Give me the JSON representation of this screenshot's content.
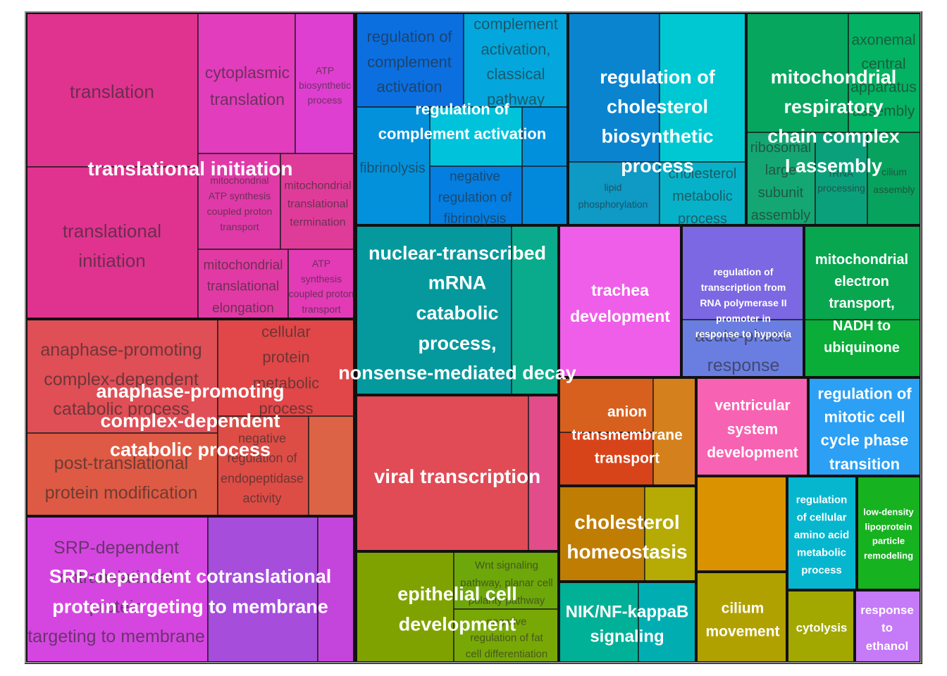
{
  "chart_data": {
    "type": "treemap",
    "groups": [
      {
        "name": "translational initiation",
        "color": "#e0338f",
        "terms": [
          {
            "name": "translation",
            "color": "#e0338f"
          },
          {
            "name": "cytoplasmic translation",
            "color": "#e23dbc"
          },
          {
            "name": "ATP biosynthetic process",
            "color": "#df3fd0"
          },
          {
            "name": "translational initiation",
            "color": "#e0338f"
          },
          {
            "name": "mitochondrial ATP synthesis coupled proton transport",
            "color": "#e03aa8"
          },
          {
            "name": "mitochondrial translational termination",
            "color": "#df3c9a"
          },
          {
            "name": "mitochondrial translational elongation",
            "color": "#e23aa4"
          },
          {
            "name": "ATP synthesis coupled proton transport",
            "color": "#e33ab6"
          }
        ]
      },
      {
        "name": "anaphase-promoting complex-dependent catabolic process",
        "color": "#e04e56",
        "terms": [
          {
            "name": "anaphase-promoting complex-dependent catabolic process",
            "color": "#e04e56"
          },
          {
            "name": "cellular protein metabolic process",
            "color": "#e14748"
          },
          {
            "name": "post-translational protein modification",
            "color": "#df5a44"
          },
          {
            "name": "negative regulation of endopeptidase activity",
            "color": "#dd4d46"
          },
          {
            "name": "",
            "color": "#dc6346"
          }
        ]
      },
      {
        "name": "SRP-dependent cotranslational protein targeting to membrane",
        "color": "#d546e0",
        "terms": [
          {
            "name": "SRP-dependent cotranslational protein targeting to membrane",
            "color": "#d546e0"
          },
          {
            "name": "",
            "color": "#a64ddc"
          },
          {
            "name": "",
            "color": "#c445db"
          }
        ]
      },
      {
        "name": "regulation of complement activation",
        "color": "#0b88dc",
        "terms": [
          {
            "name": "regulation of complement activation",
            "color": "#0b6fe0"
          },
          {
            "name": "complement activation, classical pathway",
            "color": "#03a7dd"
          },
          {
            "name": "fibrinolysis",
            "color": "#0391db"
          },
          {
            "name": "",
            "color": "#00c2db"
          },
          {
            "name": "",
            "color": "#0090dc"
          },
          {
            "name": "negative regulation of fibrinolysis",
            "color": "#047ee0"
          },
          {
            "name": "",
            "color": "#0389dc"
          }
        ]
      },
      {
        "name": "regulation of cholesterol biosynthetic process",
        "color": "#0a84cf",
        "terms": [
          {
            "name": "regulation of cholesterol biosynthetic process",
            "color": "#0a84cf"
          },
          {
            "name": "",
            "color": "#00c8d2"
          },
          {
            "name": "lipid phosphorylation",
            "color": "#0f99c5"
          },
          {
            "name": "cholesterol metabolic process",
            "color": "#07b2c9"
          }
        ]
      },
      {
        "name": "mitochondrial respiratory chain complex I assembly",
        "color": "#06a65f",
        "terms": [
          {
            "name": "mitochondrial respiratory chain complex I assembly",
            "color": "#06a65f"
          },
          {
            "name": "axonemal central apparatus assembly",
            "color": "#03b262"
          },
          {
            "name": "ribosomal large subunit assembly",
            "color": "#14a773"
          },
          {
            "name": "rRNA processing",
            "color": "#0ba07c"
          },
          {
            "name": "cilium assembly",
            "color": "#07a25e"
          }
        ]
      },
      {
        "name": "nuclear-transcribed mRNA catabolic process, nonsense-mediated decay",
        "color": "#05999d",
        "terms": [
          {
            "name": "nuclear-transcribed mRNA catabolic process, nonsense-mediated decay",
            "color": "#05999d"
          },
          {
            "name": "",
            "color": "#0aab8c"
          }
        ]
      },
      {
        "name": "trachea development",
        "color": "#ef5ee9",
        "terms": [
          {
            "name": "trachea development",
            "color": "#ef5ee9"
          }
        ]
      },
      {
        "name": "regulation of transcription from RNA polymerase II promoter in response to hypoxia",
        "color": "#7b68e2",
        "terms": [
          {
            "name": "regulation of transcription from RNA polymerase II promoter in response to hypoxia",
            "color": "#7b68e2"
          },
          {
            "name": "acute-phase response",
            "color": "#6a7ee2"
          }
        ]
      },
      {
        "name": "mitochondrial electron transport, NADH to ubiquinone",
        "color": "#08a64f",
        "terms": [
          {
            "name": "mitochondrial electron transport, NADH to ubiquinone",
            "color": "#08a64f"
          },
          {
            "name": "",
            "color": "#09ad38"
          }
        ]
      },
      {
        "name": "viral transcription",
        "color": "#e04b56",
        "terms": [
          {
            "name": "viral transcription",
            "color": "#e04b56"
          },
          {
            "name": "",
            "color": "#e24c8a"
          }
        ]
      },
      {
        "name": "epithelial cell development",
        "color": "#80a200",
        "terms": [
          {
            "name": "epithelial cell development",
            "color": "#80a200"
          },
          {
            "name": "Wnt signaling pathway, planar cell polarity pathway",
            "color": "#6ea70a"
          },
          {
            "name": "negative regulation of fat cell differentiation",
            "color": "#78a806"
          }
        ]
      },
      {
        "name": "anion transmembrane transport",
        "color": "#d8601e",
        "terms": [
          {
            "name": "anion transmembrane transport",
            "color": "#d8601e"
          },
          {
            "name": "",
            "color": "#d84419"
          },
          {
            "name": "",
            "color": "#d4801c"
          }
        ]
      },
      {
        "name": "ventricular system development",
        "color": "#f862b2",
        "terms": [
          {
            "name": "ventricular system development",
            "color": "#f862b2"
          }
        ]
      },
      {
        "name": "regulation of mitotic cell cycle phase transition",
        "color": "#2ba0f5",
        "terms": [
          {
            "name": "regulation of mitotic cell cycle phase transition",
            "color": "#2ba0f5"
          }
        ]
      },
      {
        "name": "cholesterol homeostasis",
        "color": "#bf7d04",
        "terms": [
          {
            "name": "cholesterol homeostasis",
            "color": "#bf7d04"
          },
          {
            "name": "",
            "color": "#b6aa04"
          }
        ]
      },
      {
        "name": "",
        "color": "#db9200",
        "terms": [
          {
            "name": "",
            "color": "#db9200"
          }
        ]
      },
      {
        "name": "regulation of cellular amino acid metabolic process",
        "color": "#06b6cf",
        "terms": [
          {
            "name": "regulation of cellular amino acid metabolic process",
            "color": "#06b6cf"
          }
        ]
      },
      {
        "name": "low-density lipoprotein particle remodeling",
        "color": "#16b21f",
        "terms": [
          {
            "name": "low-density lipoprotein particle remodeling",
            "color": "#16b21f"
          }
        ]
      },
      {
        "name": "NIK/NF-kappaB signaling",
        "color": "#00b097",
        "terms": [
          {
            "name": "NIK/NF-kappaB signaling",
            "color": "#00b097"
          },
          {
            "name": "",
            "color": "#00aeb2"
          }
        ]
      },
      {
        "name": "cilium movement",
        "color": "#b1a100",
        "terms": [
          {
            "name": "cilium movement",
            "color": "#b1a100"
          }
        ]
      },
      {
        "name": "cytolysis",
        "color": "#a2a800",
        "terms": [
          {
            "name": "cytolysis",
            "color": "#a2a800"
          }
        ]
      },
      {
        "name": "response to ethanol",
        "color": "#c57af8",
        "terms": [
          {
            "name": "response to ethanol",
            "color": "#c57af8"
          }
        ]
      }
    ]
  }
}
